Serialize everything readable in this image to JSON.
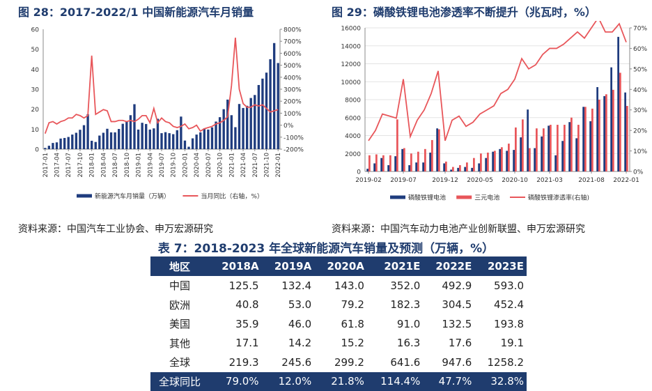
{
  "left_panel": {
    "title": "图 28：2017-2022/1 中国新能源汽车月销量",
    "source": "资料来源：中国汽车工业协会、申万宏源研究"
  },
  "right_panel": {
    "title": "图 29：磷酸铁锂电池渗透率不断提升（兆瓦时，%）",
    "source": "资料来源：中国汽车动力电池产业创新联盟、申万宏源研究"
  },
  "table": {
    "title": "表 7：2018-2023 年全球新能源汽车销量及预测（万辆，%）",
    "headers": [
      "地区",
      "2018A",
      "2019A",
      "2020A",
      "2021E",
      "2022E",
      "2023E"
    ],
    "rows": [
      [
        "中国",
        "125.5",
        "132.4",
        "143.0",
        "352.0",
        "492.9",
        "593.0"
      ],
      [
        "欧洲",
        "40.8",
        "53.0",
        "79.2",
        "182.3",
        "304.5",
        "452.4"
      ],
      [
        "美国",
        "35.9",
        "46.0",
        "61.8",
        "91.0",
        "132.5",
        "193.8"
      ],
      [
        "其他",
        "17.1",
        "14.2",
        "15.2",
        "16.3",
        "17.6",
        "19.1"
      ],
      [
        "全球",
        "219.3",
        "245.6",
        "299.2",
        "641.6",
        "947.6",
        "1258.2"
      ],
      [
        "全球同比",
        "79.0%",
        "12.0%",
        "21.8%",
        "114.4%",
        "47.7%",
        "32.8%"
      ]
    ]
  },
  "colors": {
    "bar_navy": "#1f3c7e",
    "bar_red": "#e8565a",
    "line_red": "#e8565a",
    "title_navy": "#1f3c6e"
  },
  "chart_data": [
    {
      "type": "bar",
      "x_tick_labels": [
        "2017-01",
        "2017-04",
        "2017-07",
        "2017-10",
        "2018-01",
        "2018-04",
        "2018-07",
        "2018-10",
        "2019-01",
        "2019-04",
        "2019-07",
        "2019-10",
        "2020-01",
        "2020-04",
        "2020-07",
        "2020-10",
        "2021-01",
        "2021-04",
        "2021-07",
        "2021-10",
        "2022-01"
      ],
      "ylim": [
        0,
        60
      ],
      "y_ticks": [
        "0",
        "10",
        "20",
        "30",
        "40",
        "50",
        "60"
      ],
      "y2lim": [
        -200,
        800
      ],
      "y2_ticks": [
        "-200%",
        "-100%",
        "0%",
        "100%",
        "200%",
        "300%",
        "400%",
        "500%",
        "600%",
        "700%",
        "800%"
      ],
      "series": [
        {
          "name": "新能源汽车月销量（万辆）",
          "kind": "bar",
          "axis": "left",
          "values": [
            0.6,
            1.7,
            3.1,
            3.4,
            5.3,
            5.6,
            6.1,
            7.3,
            8.2,
            9.7,
            12.0,
            17.5,
            4.2,
            3.6,
            6.8,
            8.2,
            10.2,
            8.4,
            8.4,
            10.1,
            12.7,
            13.8,
            17.0,
            22.5,
            9.8,
            13.2,
            12.6,
            9.8,
            10.4,
            15.2,
            8.0,
            8.5,
            8.0,
            7.5,
            9.5,
            16.3,
            4.3,
            1.2,
            5.4,
            7.3,
            8.4,
            10.4,
            9.8,
            10.9,
            13.8,
            16.0,
            20.0,
            24.8,
            17.0,
            11.0,
            22.6,
            20.6,
            21.7,
            25.6,
            27.1,
            32.1,
            35.3,
            38.3,
            45.0,
            53.1,
            43.1
          ]
        },
        {
          "name": "当月同比（右轴，%）",
          "kind": "line",
          "axis": "right",
          "values": [
            -70,
            20,
            30,
            10,
            30,
            40,
            60,
            60,
            90,
            80,
            60,
            80,
            580,
            90,
            110,
            130,
            120,
            30,
            30,
            40,
            40,
            30,
            40,
            30,
            50,
            80,
            80,
            20,
            140,
            20,
            60,
            30,
            20,
            -10,
            -20,
            -10,
            10,
            -30,
            -20,
            0,
            -50,
            -30,
            -20,
            -10,
            10,
            20,
            40,
            70,
            330,
            730,
            300,
            180,
            150,
            150,
            170,
            160,
            170,
            140,
            110,
            120,
            130
          ]
        }
      ]
    },
    {
      "type": "bar",
      "x_tick_labels": [
        "2019-02",
        "2019-07",
        "2019-12",
        "2020-05",
        "2020-10",
        "2021-03",
        "2021-08",
        "2022-01"
      ],
      "ylim": [
        0,
        16000
      ],
      "y_ticks": [
        "0",
        "2000",
        "4000",
        "6000",
        "8000",
        "10000",
        "12000",
        "14000",
        "16000"
      ],
      "y2lim": [
        0,
        70
      ],
      "y2_ticks": [
        "0%",
        "10%",
        "20%",
        "30%",
        "40%",
        "50%",
        "60%",
        "70%"
      ],
      "series": [
        {
          "name": "磷酸铁锂电池",
          "kind": "bar",
          "axis": "left",
          "values": [
            300,
            900,
            1500,
            700,
            1700,
            2500,
            700,
            1000,
            1000,
            2100,
            4800,
            900,
            200,
            400,
            500,
            400,
            900,
            1500,
            2200,
            2500,
            2300,
            2400,
            3800,
            6900,
            2600,
            3900,
            5100,
            1800,
            3400,
            5500,
            3700,
            7200,
            5600,
            9400,
            8400,
            11600,
            15000,
            8800
          ]
        },
        {
          "name": "三元电池",
          "kind": "bar",
          "axis": "left",
          "values": [
            1800,
            1900,
            1800,
            1800,
            5800,
            2600,
            2000,
            2200,
            2500,
            3500,
            4700,
            1100,
            500,
            700,
            1000,
            1500,
            2000,
            2100,
            2300,
            2700,
            3100,
            4900,
            5800,
            2600,
            4800,
            4800,
            5200,
            5200,
            5200,
            6000,
            5200,
            7200,
            7000,
            8000,
            8600,
            9100,
            11000,
            7300
          ]
        },
        {
          "name": "磷酸铁锂渗透率(右轴)",
          "kind": "line",
          "axis": "right",
          "values": [
            15,
            20,
            28,
            27,
            26,
            45,
            17,
            25,
            30,
            38,
            49,
            15,
            25,
            27,
            22,
            24,
            28,
            30,
            32,
            38,
            40,
            45,
            55,
            50,
            52,
            57,
            60,
            60,
            62,
            65,
            68,
            65,
            70,
            75,
            68,
            68,
            72,
            63
          ]
        }
      ]
    }
  ]
}
